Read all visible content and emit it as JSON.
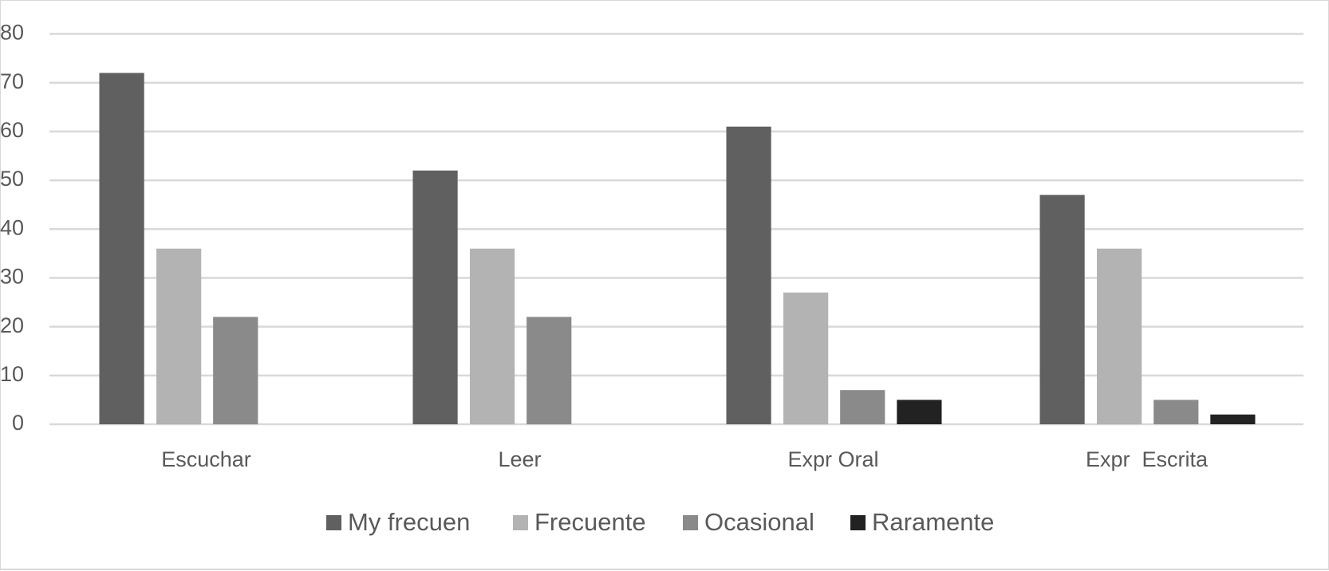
{
  "chart_data": {
    "type": "bar",
    "categories": [
      "Escuchar",
      "Leer",
      "Expr Oral",
      "Expr  Escrita"
    ],
    "series": [
      {
        "name": "My frecuen",
        "color": "#606060",
        "values": [
          72,
          52,
          61,
          47
        ]
      },
      {
        "name": "Frecuente",
        "color": "#b3b3b3",
        "values": [
          36,
          36,
          27,
          36
        ]
      },
      {
        "name": "Ocasional",
        "color": "#8a8a8a",
        "values": [
          22,
          22,
          7,
          5
        ]
      },
      {
        "name": "Raramente",
        "color": "#222222",
        "values": [
          0,
          0,
          5,
          2
        ]
      }
    ],
    "ylim": [
      0,
      80
    ],
    "yticks": [
      0,
      10,
      20,
      30,
      40,
      50,
      60,
      70,
      80
    ],
    "grid": true,
    "legend": "bottom"
  }
}
